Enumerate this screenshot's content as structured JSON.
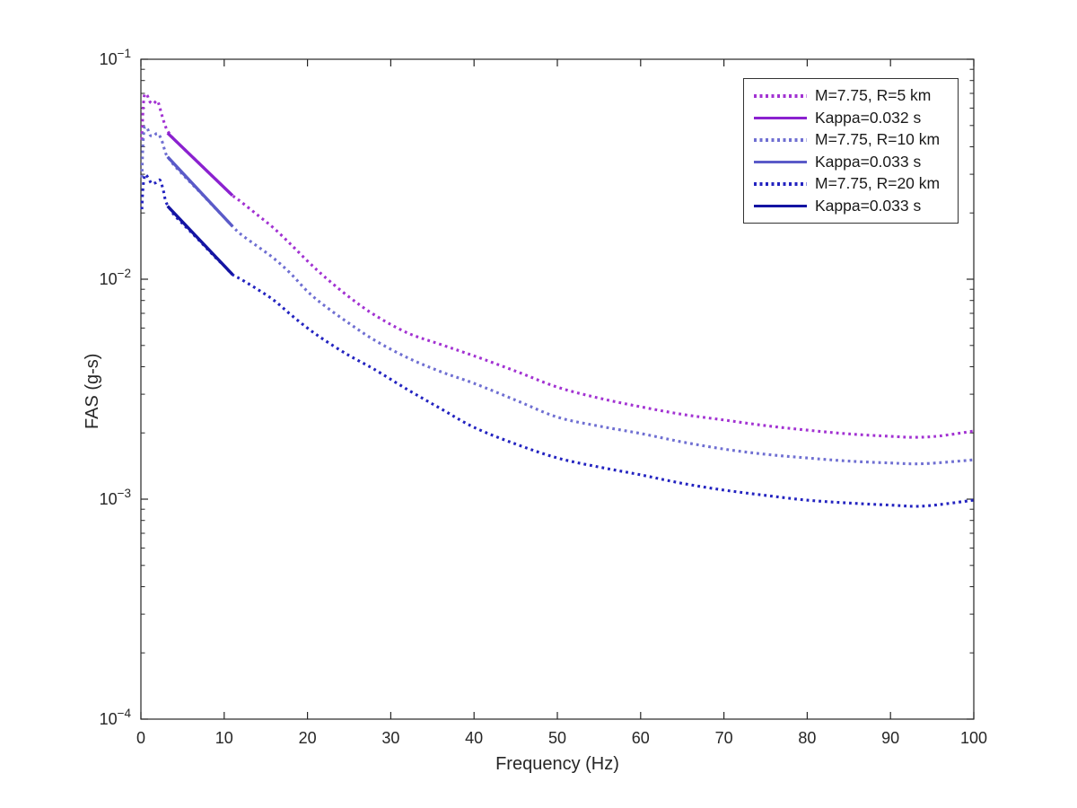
{
  "chart_data": {
    "type": "line",
    "title": "",
    "xlabel": "Frequency (Hz)",
    "ylabel": "FAS (g-s)",
    "xlim": [
      0,
      100
    ],
    "ylim": [
      0.0001,
      0.1
    ],
    "yscale": "log",
    "grid": false,
    "axis_color": "#262626",
    "tick_label_color": "#262626",
    "xticks": [
      0,
      10,
      20,
      30,
      40,
      50,
      60,
      70,
      80,
      90,
      100
    ],
    "ytick_exponents": [
      -1,
      -2,
      -3,
      -4
    ],
    "legend_position": "top-right",
    "series": [
      {
        "id": "curve-r5-dotted",
        "name": "M=7.75, R=5 km",
        "style": "dotted",
        "color": "#A232D2",
        "points": [
          [
            0.12,
            0.043
          ],
          [
            0.25,
            0.058
          ],
          [
            0.4,
            0.068
          ],
          [
            0.55,
            0.0695
          ],
          [
            0.8,
            0.068
          ],
          [
            1.1,
            0.064
          ],
          [
            1.5,
            0.0628
          ],
          [
            2.0,
            0.0645
          ],
          [
            2.5,
            0.056
          ],
          [
            3.0,
            0.049
          ],
          [
            3.5,
            0.0455
          ],
          [
            4,
            0.0432
          ],
          [
            5,
            0.0397
          ],
          [
            6,
            0.0365
          ],
          [
            7,
            0.0336
          ],
          [
            8,
            0.0309
          ],
          [
            9,
            0.0284
          ],
          [
            10,
            0.0261
          ],
          [
            11,
            0.024
          ],
          [
            12,
            0.0225
          ],
          [
            14,
            0.0196
          ],
          [
            16,
            0.017
          ],
          [
            18,
            0.0144
          ],
          [
            20,
            0.0121
          ],
          [
            22,
            0.0103
          ],
          [
            25,
            0.0083
          ],
          [
            28,
            0.0069
          ],
          [
            32,
            0.0057
          ],
          [
            36,
            0.00505
          ],
          [
            40,
            0.00448
          ],
          [
            45,
            0.00382
          ],
          [
            50,
            0.00323
          ],
          [
            55,
            0.00288
          ],
          [
            60,
            0.00263
          ],
          [
            65,
            0.00243
          ],
          [
            70,
            0.00229
          ],
          [
            75,
            0.00216
          ],
          [
            80,
            0.00206
          ],
          [
            85,
            0.00198
          ],
          [
            90,
            0.00193
          ],
          [
            93,
            0.00191
          ],
          [
            96,
            0.00194
          ],
          [
            100,
            0.00204
          ]
        ]
      },
      {
        "id": "kappa-fit-r5",
        "name": "Kappa=0.032 s",
        "style": "solid",
        "color": "#8B21CF",
        "points": [
          [
            3.2,
            0.0462
          ],
          [
            11,
            0.024
          ]
        ]
      },
      {
        "id": "curve-r10-dotted",
        "name": "M=7.75, R=10 km",
        "style": "dotted",
        "color": "#6F6FD2",
        "points": [
          [
            0.12,
            0.029
          ],
          [
            0.25,
            0.041
          ],
          [
            0.4,
            0.048
          ],
          [
            0.55,
            0.0495
          ],
          [
            0.8,
            0.0483
          ],
          [
            1.1,
            0.0452
          ],
          [
            1.5,
            0.0448
          ],
          [
            2.0,
            0.046
          ],
          [
            2.5,
            0.0428
          ],
          [
            3.0,
            0.0372
          ],
          [
            3.5,
            0.0348
          ],
          [
            4,
            0.0329
          ],
          [
            5,
            0.03
          ],
          [
            6,
            0.0274
          ],
          [
            7,
            0.0251
          ],
          [
            8,
            0.0229
          ],
          [
            9,
            0.0209
          ],
          [
            10,
            0.0191
          ],
          [
            11,
            0.0174
          ],
          [
            12,
            0.016
          ],
          [
            14,
            0.0141
          ],
          [
            16,
            0.0124
          ],
          [
            18,
            0.0106
          ],
          [
            20,
            0.0088
          ],
          [
            22,
            0.0076
          ],
          [
            25,
            0.0063
          ],
          [
            28,
            0.0053
          ],
          [
            32,
            0.0044
          ],
          [
            36,
            0.0038
          ],
          [
            40,
            0.00336
          ],
          [
            45,
            0.00282
          ],
          [
            50,
            0.00236
          ],
          [
            55,
            0.00215
          ],
          [
            60,
            0.00199
          ],
          [
            65,
            0.00182
          ],
          [
            70,
            0.00169
          ],
          [
            75,
            0.0016
          ],
          [
            80,
            0.00154
          ],
          [
            85,
            0.00149
          ],
          [
            90,
            0.00146
          ],
          [
            94,
            0.00145
          ],
          [
            100,
            0.00151
          ]
        ]
      },
      {
        "id": "kappa-fit-r10",
        "name": "Kappa=0.033 s",
        "style": "solid",
        "color": "#5A5AC8",
        "points": [
          [
            3.2,
            0.036
          ],
          [
            11,
            0.0174
          ]
        ]
      },
      {
        "id": "curve-r20-dotted",
        "name": "M=7.75, R=20 km",
        "style": "dotted",
        "color": "#2323C0",
        "points": [
          [
            0.12,
            0.0208
          ],
          [
            0.25,
            0.026
          ],
          [
            0.45,
            0.0295
          ],
          [
            0.6,
            0.0298
          ],
          [
            0.9,
            0.0288
          ],
          [
            1.3,
            0.0272
          ],
          [
            1.8,
            0.0275
          ],
          [
            2.3,
            0.0282
          ],
          [
            2.7,
            0.0252
          ],
          [
            3.0,
            0.0225
          ],
          [
            3.5,
            0.0209
          ],
          [
            4,
            0.0196
          ],
          [
            5,
            0.0179
          ],
          [
            6,
            0.0164
          ],
          [
            7,
            0.015
          ],
          [
            8,
            0.0137
          ],
          [
            9,
            0.0125
          ],
          [
            10,
            0.0115
          ],
          [
            11,
            0.0105
          ],
          [
            12,
            0.01
          ],
          [
            14,
            0.009
          ],
          [
            16,
            0.008
          ],
          [
            18,
            0.0069
          ],
          [
            20,
            0.006
          ],
          [
            22,
            0.0053
          ],
          [
            25,
            0.0045
          ],
          [
            28,
            0.0039
          ],
          [
            32,
            0.00315
          ],
          [
            36,
            0.00258
          ],
          [
            40,
            0.00212
          ],
          [
            45,
            0.00178
          ],
          [
            50,
            0.00154
          ],
          [
            55,
            0.0014
          ],
          [
            60,
            0.00129
          ],
          [
            65,
            0.00118
          ],
          [
            70,
            0.0011
          ],
          [
            75,
            0.00104
          ],
          [
            80,
            0.00099
          ],
          [
            85,
            0.00096
          ],
          [
            90,
            0.00094
          ],
          [
            94,
            0.00093
          ],
          [
            100,
            0.00099
          ]
        ]
      },
      {
        "id": "kappa-fit-r20",
        "name": "Kappa=0.033 s",
        "style": "solid",
        "color": "#1414A2",
        "points": [
          [
            3.2,
            0.0215
          ],
          [
            11,
            0.0105
          ]
        ]
      }
    ]
  }
}
